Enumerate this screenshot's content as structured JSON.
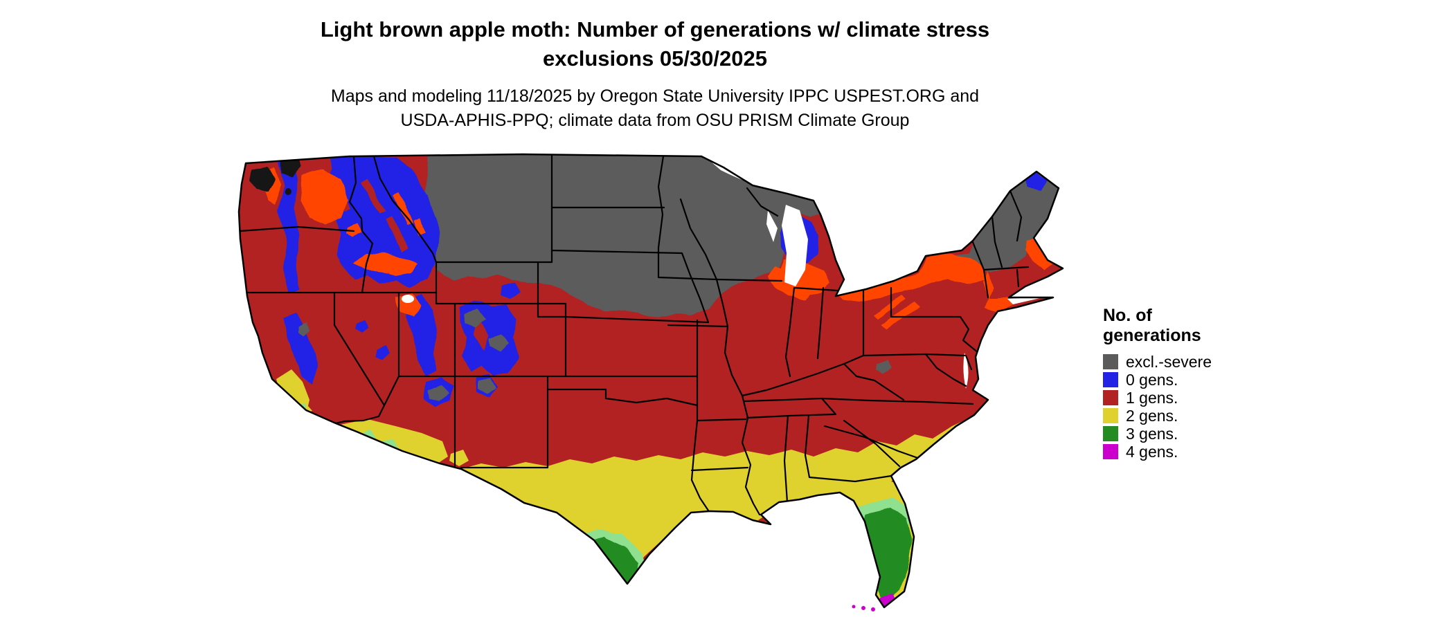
{
  "title": {
    "line1": "Light brown apple moth: Number of generations w/ climate stress",
    "line2": "exclusions 05/30/2025"
  },
  "subtitle": {
    "line1": "Maps and modeling 11/18/2025 by Oregon State University IPPC USPEST.ORG and",
    "line2": "USDA-APHIS-PPQ; climate data from OSU PRISM Climate Group"
  },
  "legend": {
    "title_line1": "No. of",
    "title_line2": "generations",
    "items": [
      {
        "key": "excl",
        "label": "excl.-severe",
        "color": "#5b5b5b"
      },
      {
        "key": "g0",
        "label": "0 gens.",
        "color": "#2323e6"
      },
      {
        "key": "g1",
        "label": "1 gens.",
        "color": "#b22222"
      },
      {
        "key": "g2",
        "label": "2 gens.",
        "color": "#e0d22e"
      },
      {
        "key": "g3",
        "label": "3 gens.",
        "color": "#228b22"
      },
      {
        "key": "g4",
        "label": "4 gens.",
        "color": "#cc00cc"
      }
    ]
  },
  "map": {
    "description": "Continental United States raster map of light brown apple moth generations with climate stress exclusions; state borders in black",
    "extra_colors": {
      "orange": "#ff4500",
      "ltgreen": "#8fe08f",
      "black": "#141414",
      "water": "#ffffff"
    }
  }
}
